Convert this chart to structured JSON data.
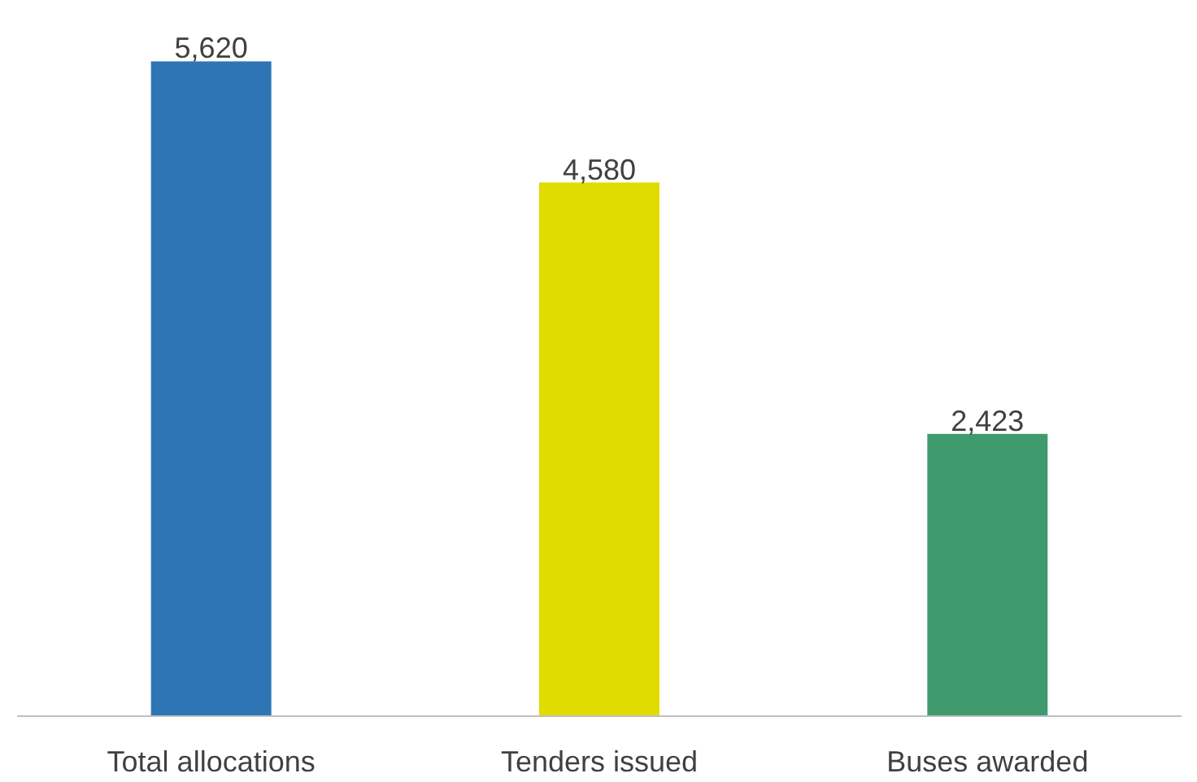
{
  "chart_data": {
    "type": "bar",
    "categories": [
      "Total allocations",
      "Tenders issued",
      "Buses awarded"
    ],
    "values": [
      5620,
      4580,
      2423
    ],
    "colors": [
      "#2e75b6",
      "#e0dc00",
      "#3f9a6e"
    ],
    "value_labels": [
      "5,620",
      "4,580",
      "2,423"
    ]
  }
}
